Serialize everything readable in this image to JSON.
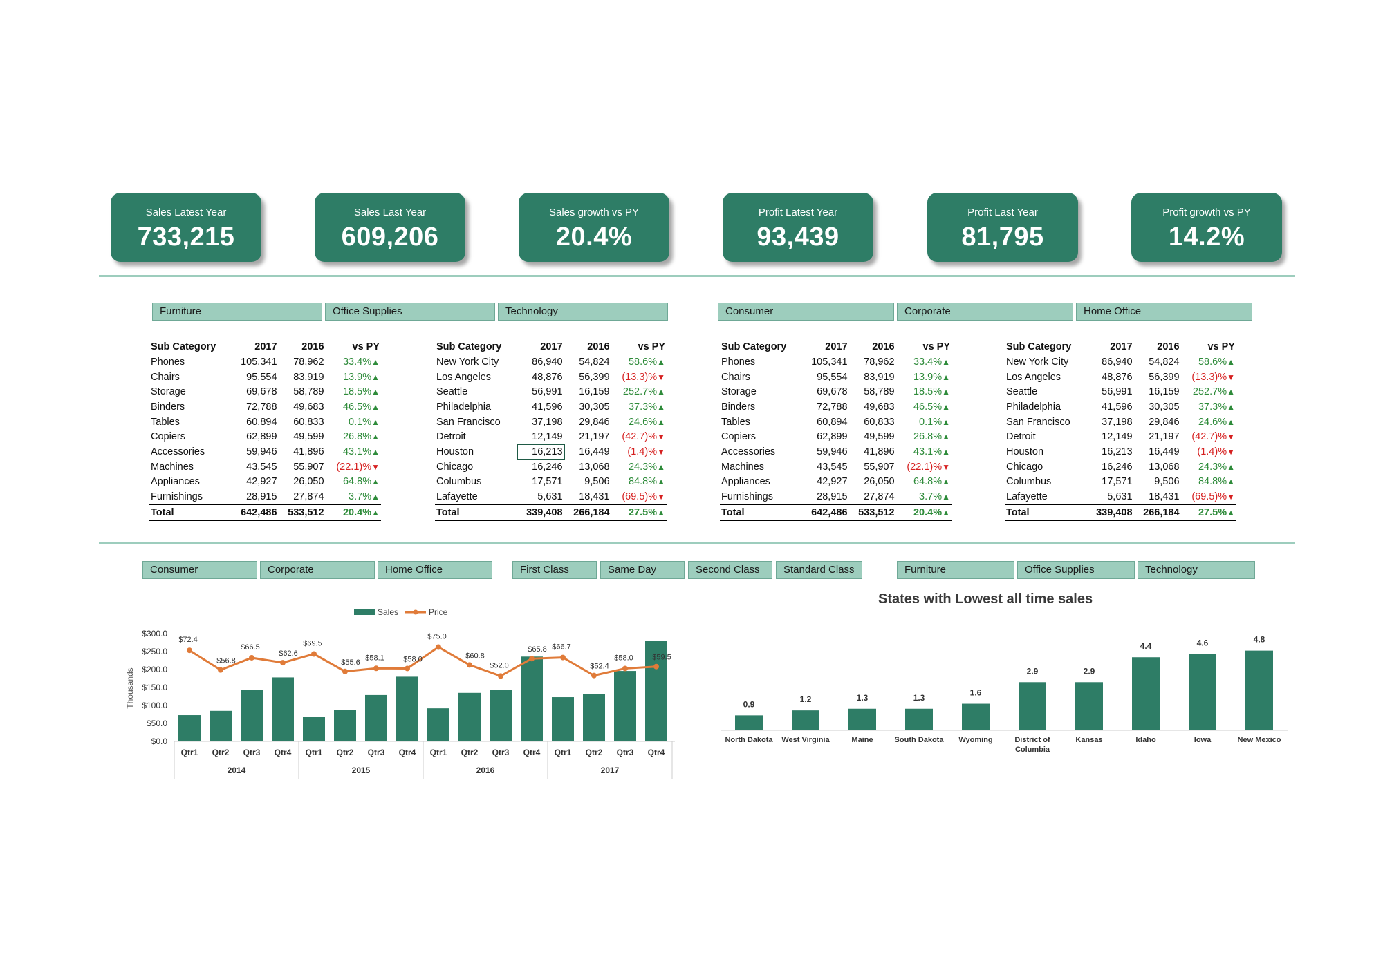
{
  "kpis": [
    {
      "label": "Sales Latest Year",
      "value": "733,215"
    },
    {
      "label": "Sales Last Year",
      "value": "609,206"
    },
    {
      "label": "Sales growth vs PY",
      "value": "20.4%"
    },
    {
      "label": "Profit Latest Year",
      "value": "93,439"
    },
    {
      "label": "Profit Last Year",
      "value": "81,795"
    },
    {
      "label": "Profit growth vs PY",
      "value": "14.2%"
    }
  ],
  "slicers_top": {
    "category": [
      "Furniture",
      "Office Supplies",
      "Technology"
    ],
    "segment": [
      "Consumer",
      "Corporate",
      "Home Office"
    ]
  },
  "slicers_bottom": {
    "segment": [
      "Consumer",
      "Corporate",
      "Home Office"
    ],
    "ship_mode": [
      "First Class",
      "Same Day",
      "Second Class",
      "Standard Class"
    ],
    "category": [
      "Furniture",
      "Office Supplies",
      "Technology"
    ]
  },
  "tables": {
    "headers": [
      "Sub Category",
      "2017",
      "2016",
      "vs PY"
    ],
    "subcategory": {
      "rows": [
        {
          "name": "Phones",
          "y2017": "105,341",
          "y2016": "78,962",
          "vs": "33.4%",
          "dir": "up"
        },
        {
          "name": "Chairs",
          "y2017": "95,554",
          "y2016": "83,919",
          "vs": "13.9%",
          "dir": "up"
        },
        {
          "name": "Storage",
          "y2017": "69,678",
          "y2016": "58,789",
          "vs": "18.5%",
          "dir": "up"
        },
        {
          "name": "Binders",
          "y2017": "72,788",
          "y2016": "49,683",
          "vs": "46.5%",
          "dir": "up"
        },
        {
          "name": "Tables",
          "y2017": "60,894",
          "y2016": "60,833",
          "vs": "0.1%",
          "dir": "up"
        },
        {
          "name": "Copiers",
          "y2017": "62,899",
          "y2016": "49,599",
          "vs": "26.8%",
          "dir": "up"
        },
        {
          "name": "Accessories",
          "y2017": "59,946",
          "y2016": "41,896",
          "vs": "43.1%",
          "dir": "up"
        },
        {
          "name": "Machines",
          "y2017": "43,545",
          "y2016": "55,907",
          "vs": "(22.1)%",
          "dir": "down"
        },
        {
          "name": "Appliances",
          "y2017": "42,927",
          "y2016": "26,050",
          "vs": "64.8%",
          "dir": "up"
        },
        {
          "name": "Furnishings",
          "y2017": "28,915",
          "y2016": "27,874",
          "vs": "3.7%",
          "dir": "up"
        }
      ],
      "total": {
        "name": "Total",
        "y2017": "642,486",
        "y2016": "533,512",
        "vs": "20.4%",
        "dir": "up"
      }
    },
    "city": {
      "rows": [
        {
          "name": "New York City",
          "y2017": "86,940",
          "y2016": "54,824",
          "vs": "58.6%",
          "dir": "up"
        },
        {
          "name": "Los Angeles",
          "y2017": "48,876",
          "y2016": "56,399",
          "vs": "(13.3)%",
          "dir": "down"
        },
        {
          "name": "Seattle",
          "y2017": "56,991",
          "y2016": "16,159",
          "vs": "252.7%",
          "dir": "up"
        },
        {
          "name": "Philadelphia",
          "y2017": "41,596",
          "y2016": "30,305",
          "vs": "37.3%",
          "dir": "up"
        },
        {
          "name": "San Francisco",
          "y2017": "37,198",
          "y2016": "29,846",
          "vs": "24.6%",
          "dir": "up"
        },
        {
          "name": "Detroit",
          "y2017": "12,149",
          "y2016": "21,197",
          "vs": "(42.7)%",
          "dir": "down"
        },
        {
          "name": "Houston",
          "y2017": "16,213",
          "y2016": "16,449",
          "vs": "(1.4)%",
          "dir": "down"
        },
        {
          "name": "Chicago",
          "y2017": "16,246",
          "y2016": "13,068",
          "vs": "24.3%",
          "dir": "up"
        },
        {
          "name": "Columbus",
          "y2017": "17,571",
          "y2016": "9,506",
          "vs": "84.8%",
          "dir": "up"
        },
        {
          "name": "Lafayette",
          "y2017": "5,631",
          "y2016": "18,431",
          "vs": "(69.5)%",
          "dir": "down"
        }
      ],
      "total": {
        "name": "Total",
        "y2017": "339,408",
        "y2016": "266,184",
        "vs": "27.5%",
        "dir": "up"
      }
    }
  },
  "colors": {
    "accent": "#2e7d66",
    "slicer": "#9dcdbd",
    "line": "#e07b39",
    "up": "#2e8b3a",
    "down": "#d62020"
  },
  "chart_data": [
    {
      "type": "bar",
      "legend": [
        "Sales",
        "Price"
      ],
      "ylabel": "Thousands",
      "yticks": [
        "$0.0",
        "$50.0",
        "$100.0",
        "$150.0",
        "$200.0",
        "$250.0",
        "$300.0"
      ],
      "ylim": [
        0,
        300
      ],
      "quarters": [
        "Qtr1",
        "Qtr2",
        "Qtr3",
        "Qtr4",
        "Qtr1",
        "Qtr2",
        "Qtr3",
        "Qtr4",
        "Qtr1",
        "Qtr2",
        "Qtr3",
        "Qtr4",
        "Qtr1",
        "Qtr2",
        "Qtr3",
        "Qtr4"
      ],
      "years": [
        "2014",
        "2015",
        "2016",
        "2017"
      ],
      "series": [
        {
          "name": "Sales",
          "type": "bar",
          "values": [
            73,
            85,
            143,
            178,
            68,
            88,
            129,
            180,
            92,
            135,
            143,
            236,
            123,
            132,
            196,
            280
          ]
        },
        {
          "name": "Price",
          "type": "line",
          "values": [
            72.4,
            56.8,
            66.5,
            62.6,
            69.5,
            55.6,
            58.1,
            58.0,
            75.0,
            60.8,
            52.0,
            65.8,
            66.7,
            52.4,
            58.0,
            59.5
          ],
          "labels": [
            "$72.4",
            "$56.8",
            "$66.5",
            "$62.6",
            "$69.5",
            "$55.6",
            "$58.1",
            "$58.0",
            "$75.0",
            "$60.8",
            "$52.0",
            "$65.8",
            "$66.7",
            "$52.4",
            "$58.0",
            "$59.5"
          ]
        }
      ],
      "legend_position": "top"
    },
    {
      "type": "bar",
      "title": "States with Lowest all time sales",
      "categories": [
        "North Dakota",
        "West Virginia",
        "Maine",
        "South Dakota",
        "Wyoming",
        "District of Columbia",
        "Kansas",
        "Idaho",
        "Iowa",
        "New Mexico"
      ],
      "values": [
        0.9,
        1.2,
        1.3,
        1.3,
        1.6,
        2.9,
        2.9,
        4.4,
        4.6,
        4.8
      ],
      "ylim": [
        0,
        5.2
      ]
    }
  ]
}
